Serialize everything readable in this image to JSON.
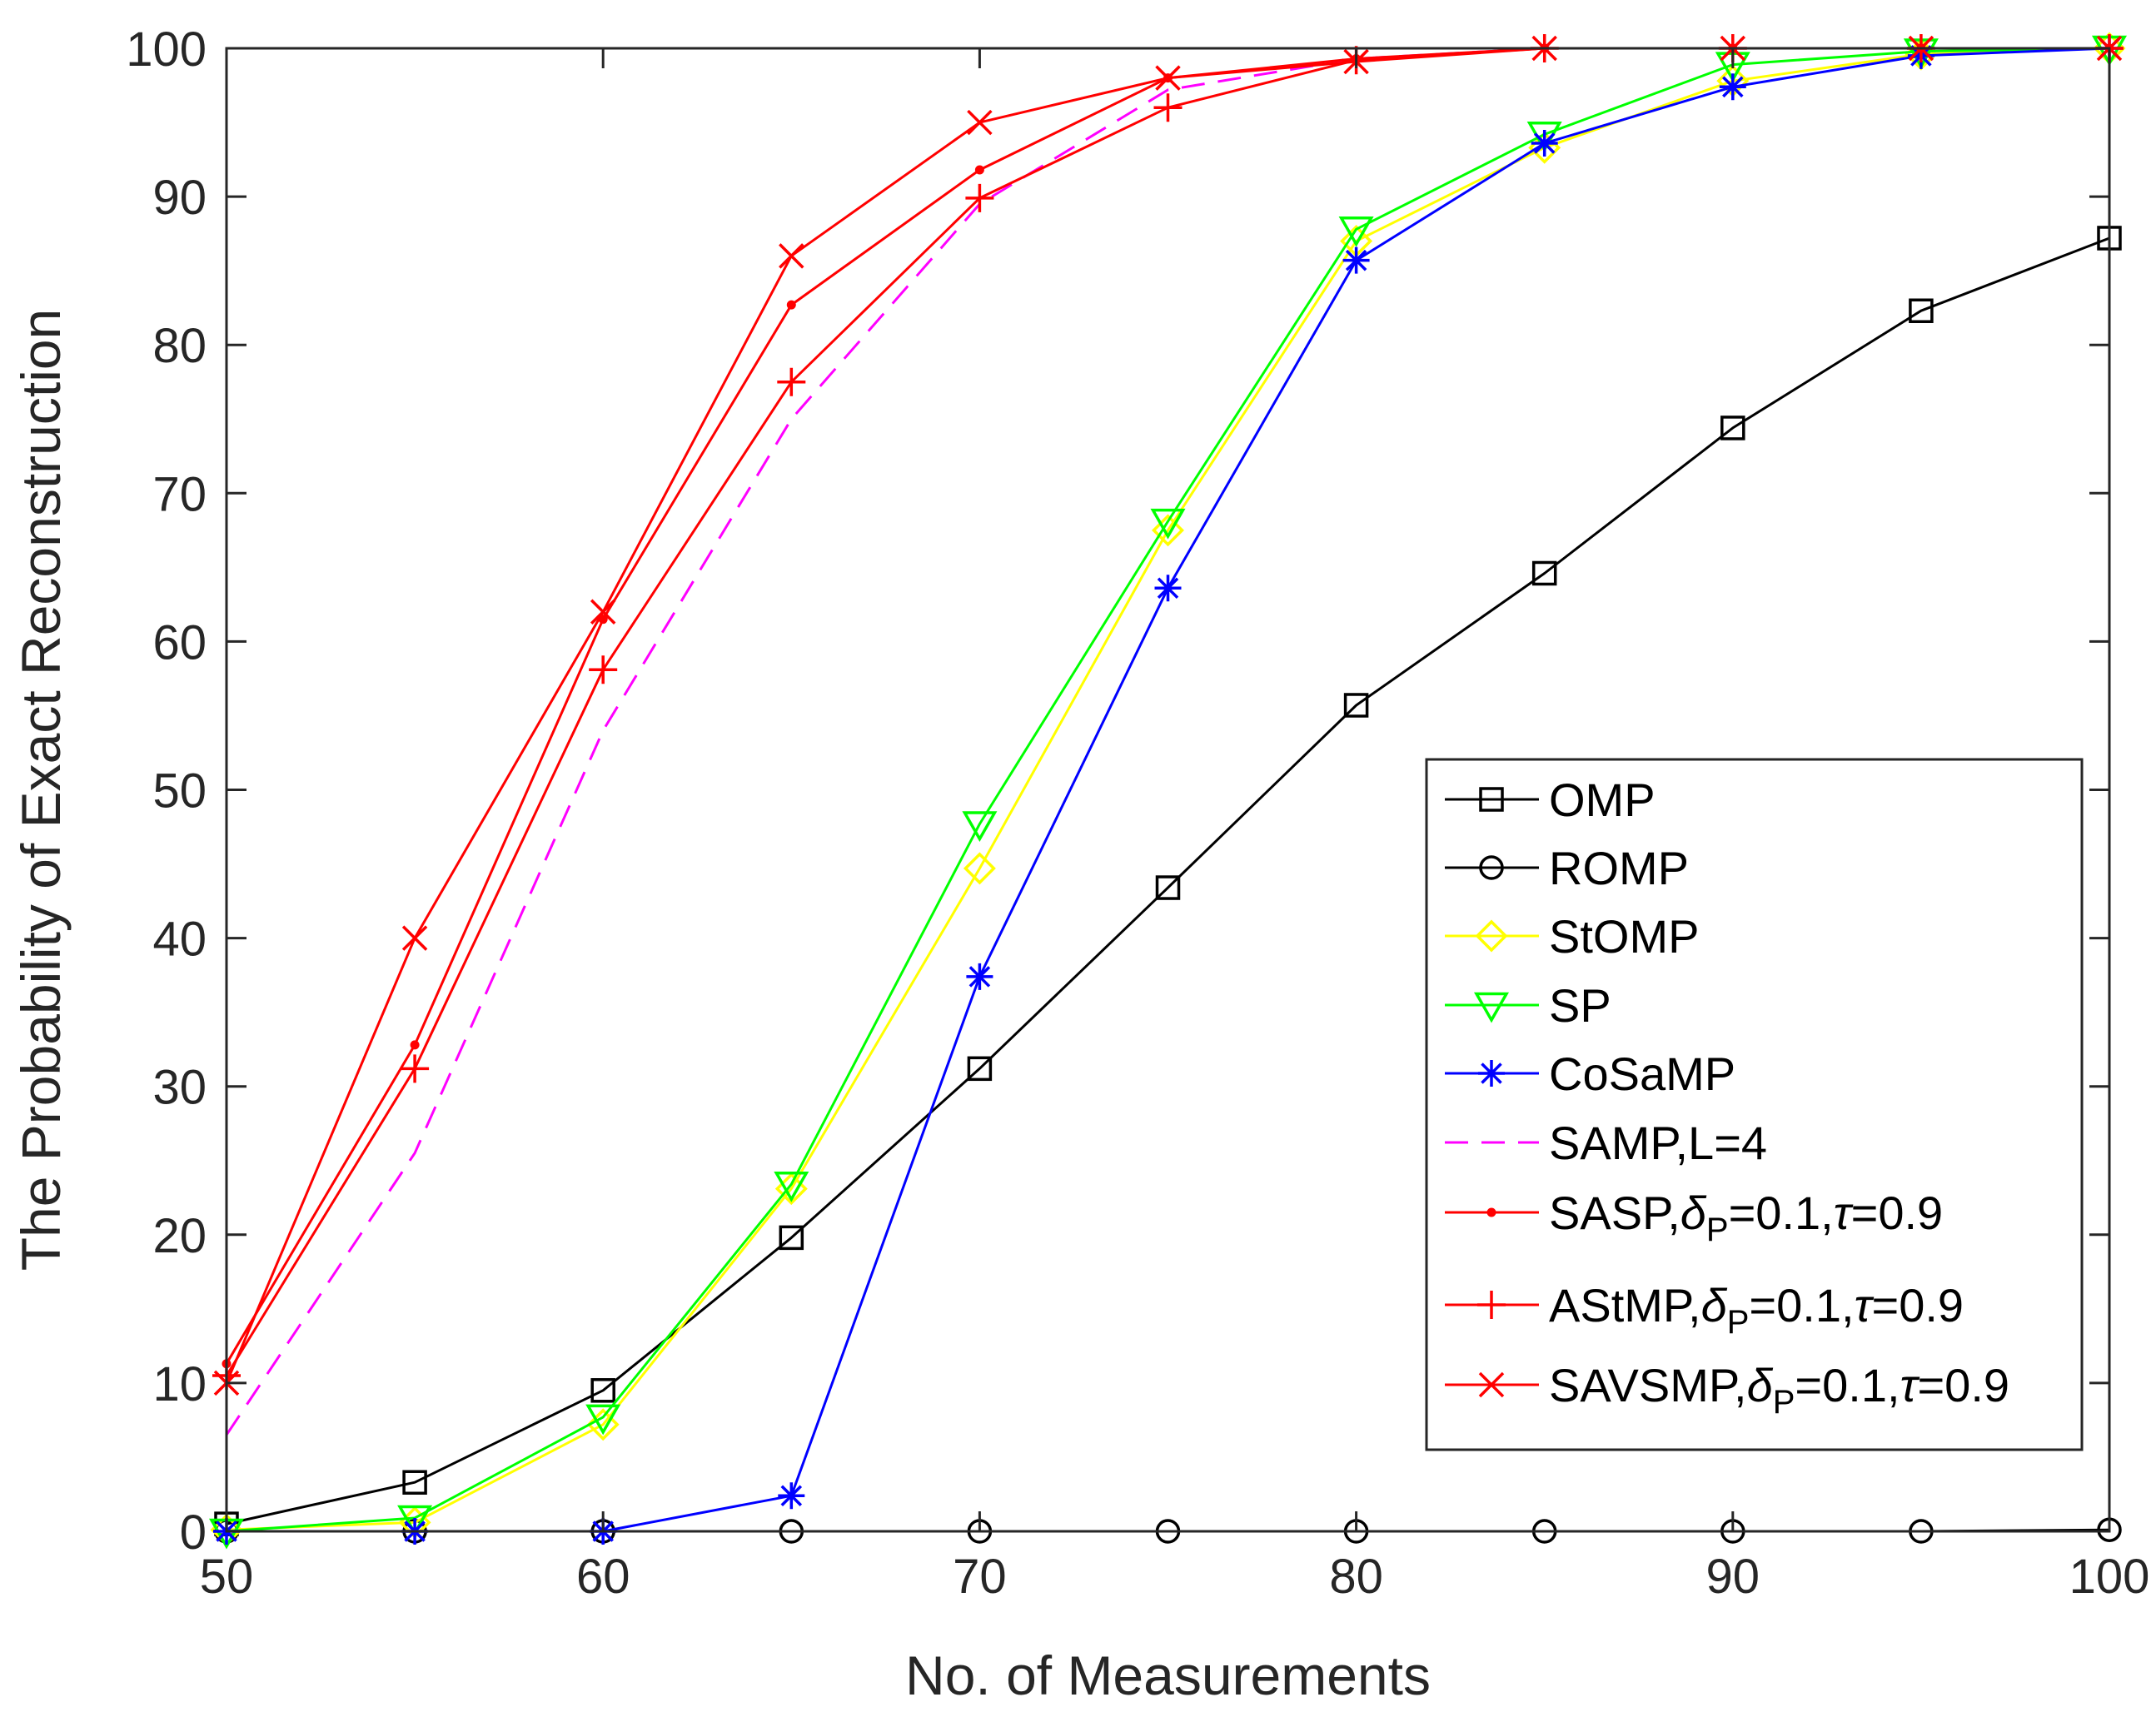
{
  "chart_data": {
    "type": "line",
    "title": "",
    "xlabel": "No. of Measurements",
    "ylabel": "The Probability of Exact Reconstruction",
    "xlim": [
      50,
      100
    ],
    "ylim": [
      0,
      100
    ],
    "xticks": [
      50,
      60,
      70,
      80,
      90,
      100
    ],
    "yticks": [
      0,
      10,
      20,
      30,
      40,
      50,
      60,
      70,
      80,
      90,
      100
    ],
    "xtick_labels": [
      "50",
      "60",
      "70",
      "80",
      "90",
      "100"
    ],
    "ytick_labels": [
      "0",
      "10",
      "20",
      "30",
      "40",
      "50",
      "60",
      "70",
      "80",
      "90",
      "100"
    ],
    "grid": false,
    "legend_position": "bottom-right",
    "x": [
      50,
      55,
      60,
      65,
      70,
      75,
      80,
      85,
      90,
      95,
      100
    ],
    "series": [
      {
        "name": "OMP",
        "legend": {
          "main": "OMP"
        },
        "color": "#000000",
        "marker": "square",
        "dash": "solid",
        "values": [
          0.5,
          3.3,
          9.5,
          19.8,
          31.2,
          43.4,
          55.7,
          64.6,
          74.4,
          82.3,
          87.2
        ]
      },
      {
        "name": "ROMP",
        "legend": {
          "main": "ROMP"
        },
        "color": "#000000",
        "marker": "circle",
        "dash": "solid",
        "values": [
          0,
          0,
          0,
          0,
          0,
          0,
          0,
          0,
          0,
          0,
          0.1
        ]
      },
      {
        "name": "StOMP",
        "legend": {
          "main": "StOMP"
        },
        "color": "#ffff00",
        "marker": "diamond",
        "dash": "solid",
        "values": [
          0.1,
          0.6,
          7.2,
          23.1,
          44.7,
          67.5,
          87.0,
          93.3,
          97.8,
          99.6,
          100
        ]
      },
      {
        "name": "SP",
        "legend": {
          "main": "SP"
        },
        "color": "#00ff00",
        "marker": "triangle-down",
        "dash": "solid",
        "values": [
          0,
          0.9,
          7.7,
          23.4,
          47.7,
          68.1,
          87.8,
          94.2,
          98.9,
          99.8,
          100
        ]
      },
      {
        "name": "CoSaMP",
        "legend": {
          "main": "CoSaMP"
        },
        "color": "#0000ff",
        "marker": "asterisk",
        "dash": "solid",
        "values": [
          0,
          0,
          0,
          2.4,
          37.4,
          63.6,
          85.7,
          93.6,
          97.4,
          99.5,
          100
        ]
      },
      {
        "name": "SAMP,L=4",
        "legend": {
          "main": "SAMP,L=4"
        },
        "color": "#ff00ff",
        "marker": "none",
        "dash": "dashed",
        "values": [
          6.5,
          25.5,
          54.0,
          75.0,
          89.5,
          97.2,
          99.3,
          100,
          100,
          100,
          100
        ]
      },
      {
        "name": "SASP,δP=0.1,τ=0.9",
        "legend": {
          "main": "SASP,",
          "delta": "δ",
          "sub": "P",
          "rest": "=0.1,",
          "tau": "τ",
          "tail": "=0.9"
        },
        "color": "#ff0000",
        "marker": "dot",
        "dash": "solid",
        "values": [
          11.3,
          32.8,
          61.5,
          82.7,
          91.8,
          98.0,
          99.3,
          100,
          100,
          100,
          100
        ]
      },
      {
        "name": "AStMP,δP=0.1,τ=0.9",
        "legend": {
          "main": "AStMP,",
          "delta": "δ",
          "sub": "P",
          "rest": "=0.1,",
          "tau": "τ",
          "tail": "=0.9"
        },
        "color": "#ff0000",
        "marker": "plus",
        "dash": "solid",
        "values": [
          10.5,
          31.2,
          58.1,
          77.5,
          89.9,
          96.0,
          99.2,
          100,
          100,
          100,
          100
        ]
      },
      {
        "name": "SAVSMP,δP=0.1,τ=0.9",
        "legend": {
          "main": "SAVSMP,",
          "delta": "δ",
          "sub": "P",
          "rest": "=0.1,",
          "tau": "τ",
          "tail": "=0.9"
        },
        "color": "#ff0000",
        "marker": "cross",
        "dash": "solid",
        "values": [
          10.0,
          40.0,
          62.0,
          86.0,
          95.0,
          98.0,
          99.1,
          100,
          100,
          100,
          100
        ]
      }
    ]
  }
}
